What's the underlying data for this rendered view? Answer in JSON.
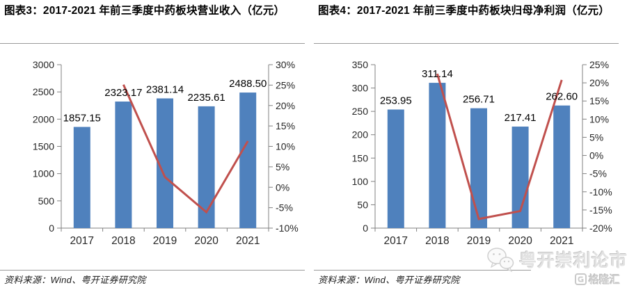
{
  "watermark": {
    "wechat_name": "粤开崇利论市",
    "logo_text": "格隆汇",
    "color": "#e2e2e2"
  },
  "chart_data": [
    {
      "type": "combo",
      "subtype": [
        "bar",
        "line"
      ],
      "title": "图表3：2017-2021 年前三季度中药板块营业收入（亿元）",
      "source": "资料来源：Wind、粤开证券研究院",
      "categories": [
        "2017",
        "2018",
        "2019",
        "2020",
        "2021"
      ],
      "series": [
        {
          "kind": "bar",
          "axis": "left",
          "color": "#4f81bd",
          "values": [
            1857.15,
            2323.17,
            2381.14,
            2235.61,
            2488.5
          ],
          "labels": [
            "1857.15",
            "2323.17",
            "2381.14",
            "2235.61",
            "2488.50"
          ]
        },
        {
          "kind": "line",
          "axis": "right",
          "unit": "percent",
          "color": "#c0504d",
          "values": [
            null,
            25.1,
            2.5,
            -6.1,
            11.3
          ]
        }
      ],
      "left_axis": {
        "min": 0,
        "max": 3000,
        "ticks": [
          "0",
          "500",
          "1000",
          "1500",
          "2000",
          "2500",
          "3000"
        ]
      },
      "right_axis": {
        "min": -10,
        "max": 30,
        "ticks": [
          "-10%",
          "-5%",
          "0%",
          "5%",
          "10%",
          "15%",
          "20%",
          "25%",
          "30%"
        ]
      },
      "grid": false,
      "legend": "none"
    },
    {
      "type": "combo",
      "subtype": [
        "bar",
        "line"
      ],
      "title": "图表4：2017-2021 年前三季度中药板块归母净利润（亿元）",
      "source": "资料来源：Wind、粤开证券研究院",
      "categories": [
        "2017",
        "2018",
        "2019",
        "2020",
        "2021"
      ],
      "series": [
        {
          "kind": "bar",
          "axis": "left",
          "color": "#4f81bd",
          "values": [
            253.95,
            311.14,
            256.71,
            217.41,
            262.6
          ],
          "labels": [
            "253.95",
            "311.14",
            "256.71",
            "217.41",
            "262.60"
          ]
        },
        {
          "kind": "line",
          "axis": "right",
          "unit": "percent",
          "color": "#c0504d",
          "values": [
            null,
            22.5,
            -17.5,
            -15.3,
            20.8
          ]
        }
      ],
      "left_axis": {
        "min": 0,
        "max": 350,
        "ticks": [
          "0",
          "50",
          "100",
          "150",
          "200",
          "250",
          "300",
          "350"
        ]
      },
      "right_axis": {
        "min": -20,
        "max": 25,
        "ticks": [
          "-20%",
          "-15%",
          "-10%",
          "-5%",
          "0%",
          "5%",
          "10%",
          "15%",
          "20%",
          "25%"
        ]
      },
      "grid": false,
      "legend": "none"
    }
  ],
  "style": {
    "axis_line_color": "#808080",
    "axis_text_color": "#262626",
    "data_label_color": "#000000"
  }
}
